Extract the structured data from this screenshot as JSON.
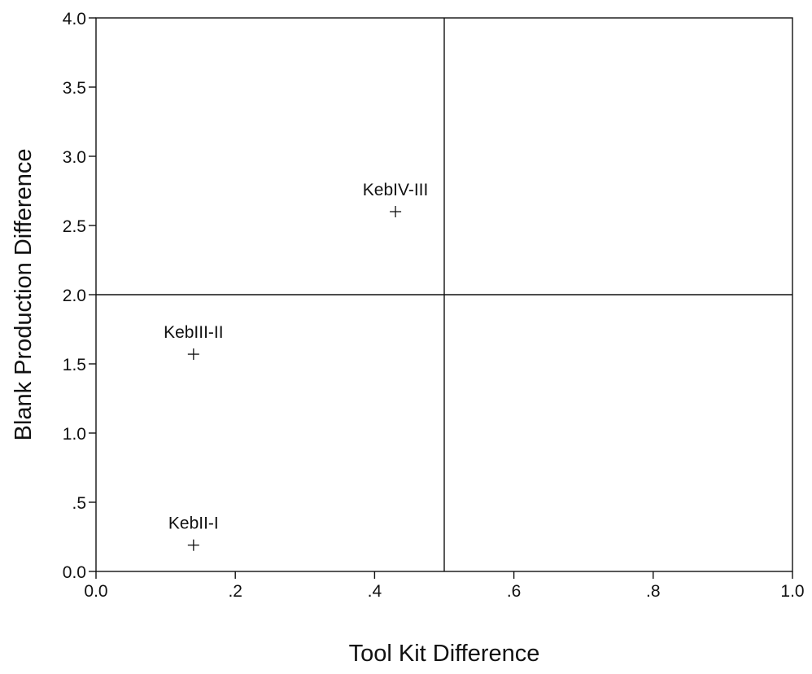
{
  "chart_data": {
    "type": "scatter",
    "xlabel": "Tool Kit Difference",
    "ylabel": "Blank Production Difference",
    "xlim": [
      0.0,
      1.0
    ],
    "ylim": [
      0.0,
      4.0
    ],
    "x_ticks": [
      {
        "value": 0.0,
        "label": "0.0"
      },
      {
        "value": 0.2,
        "label": ".2"
      },
      {
        "value": 0.4,
        "label": ".4"
      },
      {
        "value": 0.6,
        "label": ".6"
      },
      {
        "value": 0.8,
        "label": ".8"
      },
      {
        "value": 1.0,
        "label": "1.0"
      }
    ],
    "y_ticks": [
      {
        "value": 0.0,
        "label": "0.0"
      },
      {
        "value": 0.5,
        "label": ".5"
      },
      {
        "value": 1.0,
        "label": "1.0"
      },
      {
        "value": 1.5,
        "label": "1.5"
      },
      {
        "value": 2.0,
        "label": "2.0"
      },
      {
        "value": 2.5,
        "label": "2.5"
      },
      {
        "value": 3.0,
        "label": "3.0"
      },
      {
        "value": 3.5,
        "label": "3.5"
      },
      {
        "value": 4.0,
        "label": "4.0"
      }
    ],
    "reference_lines": {
      "x": 0.5,
      "y": 2.0
    },
    "points": [
      {
        "label": "KebIV-III",
        "x": 0.43,
        "y": 2.6
      },
      {
        "label": "KebIII-II",
        "x": 0.14,
        "y": 1.57
      },
      {
        "label": "KebII-I",
        "x": 0.14,
        "y": 0.19
      }
    ],
    "marker": "plus",
    "grid": false,
    "colors": {
      "ink": "#111111",
      "background": "#ffffff"
    }
  }
}
